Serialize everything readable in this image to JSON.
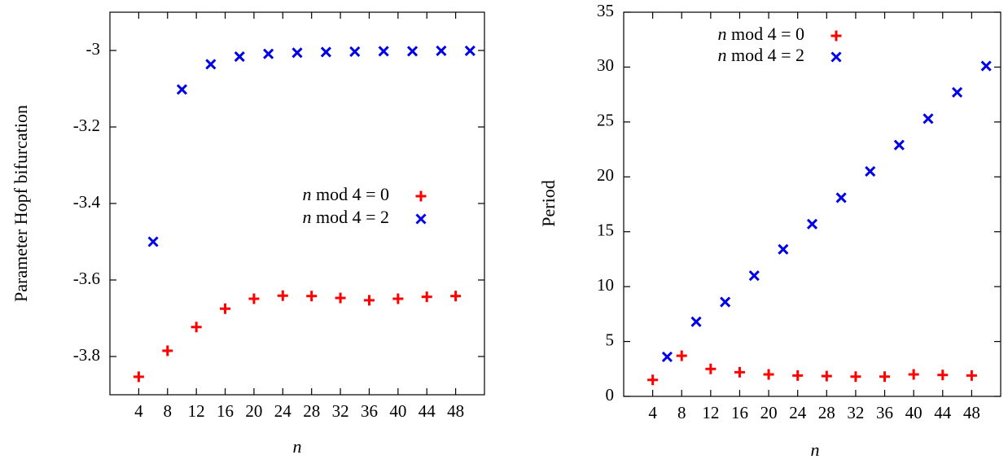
{
  "colors": {
    "n_mod4_0": "#ff0000",
    "n_mod4_2": "#0000e6"
  },
  "chart_data": [
    {
      "type": "scatter",
      "title": "",
      "xlabel": "n",
      "ylabel": "Parameter Hopf bifurcation",
      "xlim": [
        0,
        52
      ],
      "ylim": [
        -3.9,
        -2.9
      ],
      "xticks": [
        4,
        8,
        12,
        16,
        20,
        24,
        28,
        32,
        36,
        40,
        44,
        48
      ],
      "yticks": [
        -3.8,
        -3.6,
        -3.4,
        -3.2,
        -3.0
      ],
      "ytick_labels": [
        "-3.8",
        "-3.6",
        "-3.4",
        "-3.2",
        "-3"
      ],
      "legend_position": "center-right",
      "grid": false,
      "series": [
        {
          "name": "n mod 4 = 0",
          "marker": "plus",
          "x": [
            4,
            8,
            12,
            16,
            20,
            24,
            28,
            32,
            36,
            40,
            44,
            48
          ],
          "y": [
            -3.853,
            -3.785,
            -3.723,
            -3.675,
            -3.649,
            -3.641,
            -3.642,
            -3.647,
            -3.653,
            -3.649,
            -3.644,
            -3.642
          ]
        },
        {
          "name": "n mod 4 = 2",
          "marker": "cross",
          "x": [
            6,
            10,
            14,
            18,
            22,
            26,
            30,
            34,
            38,
            42,
            46,
            50
          ],
          "y": [
            -3.5,
            -3.102,
            -3.036,
            -3.016,
            -3.009,
            -3.006,
            -3.004,
            -3.003,
            -3.002,
            -3.002,
            -3.001,
            -3.001
          ]
        }
      ]
    },
    {
      "type": "scatter",
      "title": "",
      "xlabel": "n",
      "ylabel": "Period",
      "xlim": [
        0,
        52
      ],
      "ylim": [
        0,
        35
      ],
      "xticks": [
        4,
        8,
        12,
        16,
        20,
        24,
        28,
        32,
        36,
        40,
        44,
        48
      ],
      "yticks": [
        0,
        5,
        10,
        15,
        20,
        25,
        30,
        35
      ],
      "ytick_labels": [
        "0",
        "5",
        "10",
        "15",
        "20",
        "25",
        "30",
        "35"
      ],
      "legend_position": "top-left",
      "grid": false,
      "series": [
        {
          "name": "n mod 4 = 0",
          "marker": "plus",
          "x": [
            4,
            8,
            12,
            16,
            20,
            24,
            28,
            32,
            36,
            40,
            44,
            48
          ],
          "y": [
            1.5,
            3.7,
            2.5,
            2.2,
            2.0,
            1.9,
            1.85,
            1.8,
            1.8,
            2.0,
            1.95,
            1.9
          ]
        },
        {
          "name": "n mod 4 = 2",
          "marker": "cross",
          "x": [
            6,
            10,
            14,
            18,
            22,
            26,
            30,
            34,
            38,
            42,
            46,
            50
          ],
          "y": [
            3.6,
            6.8,
            8.6,
            11.0,
            13.4,
            15.7,
            18.1,
            20.5,
            22.9,
            25.3,
            27.7,
            30.1
          ]
        }
      ]
    }
  ]
}
